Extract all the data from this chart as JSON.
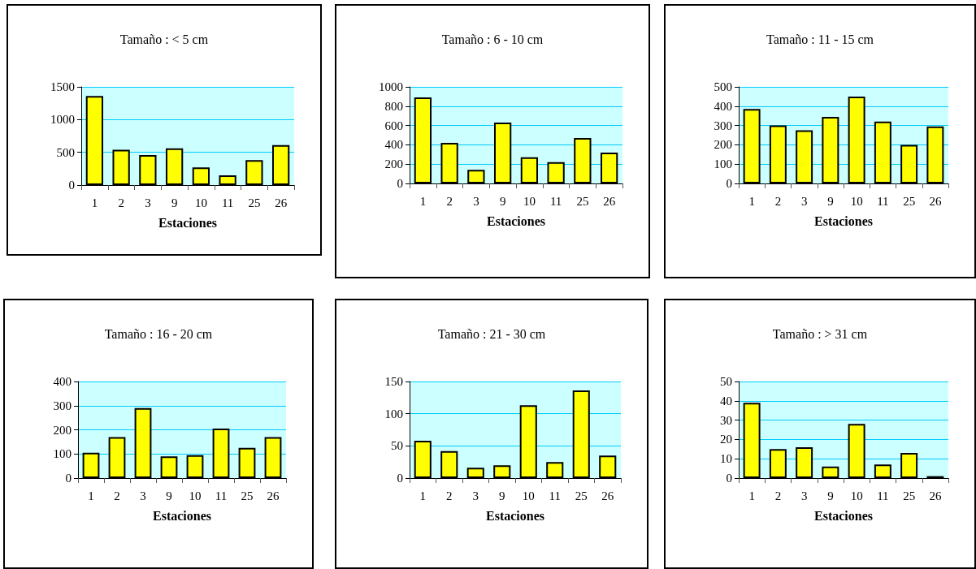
{
  "chart_data": [
    {
      "type": "bar",
      "title": "Tamaño : < 5 cm",
      "xlabel": "Estaciones",
      "categories": [
        "1",
        "2",
        "3",
        "9",
        "10",
        "11",
        "25",
        "26"
      ],
      "values": [
        1360,
        540,
        460,
        560,
        270,
        150,
        380,
        610
      ],
      "color": "#ffff00",
      "ylim": [
        0,
        1500
      ],
      "yticks": [
        0,
        500,
        1000,
        1500
      ],
      "grid": "y"
    },
    {
      "type": "bar",
      "title": "Tamaño : 6 - 10 cm",
      "xlabel": "Estaciones",
      "categories": [
        "1",
        "2",
        "3",
        "9",
        "10",
        "11",
        "25",
        "26"
      ],
      "values": [
        890,
        420,
        140,
        630,
        270,
        220,
        470,
        320
      ],
      "color": "#ffff00",
      "ylim": [
        0,
        1000
      ],
      "yticks": [
        0,
        200,
        400,
        600,
        800,
        1000
      ],
      "grid": "y"
    },
    {
      "type": "bar",
      "title": "Tamaño : 11 - 15 cm",
      "xlabel": "Estaciones",
      "categories": [
        "1",
        "2",
        "3",
        "9",
        "10",
        "11",
        "25",
        "26"
      ],
      "values": [
        385,
        300,
        275,
        345,
        450,
        320,
        200,
        295
      ],
      "color": "#ffff00",
      "ylim": [
        0,
        500
      ],
      "yticks": [
        0,
        100,
        200,
        300,
        400,
        500
      ],
      "grid": "y"
    },
    {
      "type": "bar",
      "title": "Tamaño : 16 - 20 cm",
      "xlabel": "Estaciones",
      "categories": [
        "1",
        "2",
        "3",
        "9",
        "10",
        "11",
        "25",
        "26"
      ],
      "values": [
        105,
        170,
        290,
        90,
        95,
        205,
        125,
        170
      ],
      "color": "#ffff00",
      "ylim": [
        0,
        400
      ],
      "yticks": [
        0,
        100,
        200,
        300,
        400
      ],
      "grid": "y"
    },
    {
      "type": "bar",
      "title": "Tamaño : 21 - 30 cm",
      "xlabel": "Estaciones",
      "categories": [
        "1",
        "2",
        "3",
        "9",
        "10",
        "11",
        "25",
        "26"
      ],
      "values": [
        58,
        42,
        16,
        20,
        113,
        25,
        136,
        35
      ],
      "color": "#ffff00",
      "ylim": [
        0,
        150
      ],
      "yticks": [
        0,
        50,
        100,
        150
      ],
      "grid": "y"
    },
    {
      "type": "bar",
      "title": "Tamaño : > 31 cm",
      "xlabel": "Estaciones",
      "categories": [
        "1",
        "2",
        "3",
        "9",
        "10",
        "11",
        "25",
        "26"
      ],
      "values": [
        39,
        15,
        16,
        6,
        28,
        7,
        13,
        1
      ],
      "color": "#ffff00",
      "ylim": [
        0,
        50
      ],
      "yticks": [
        0,
        10,
        20,
        30,
        40,
        50
      ],
      "grid": "y"
    }
  ]
}
